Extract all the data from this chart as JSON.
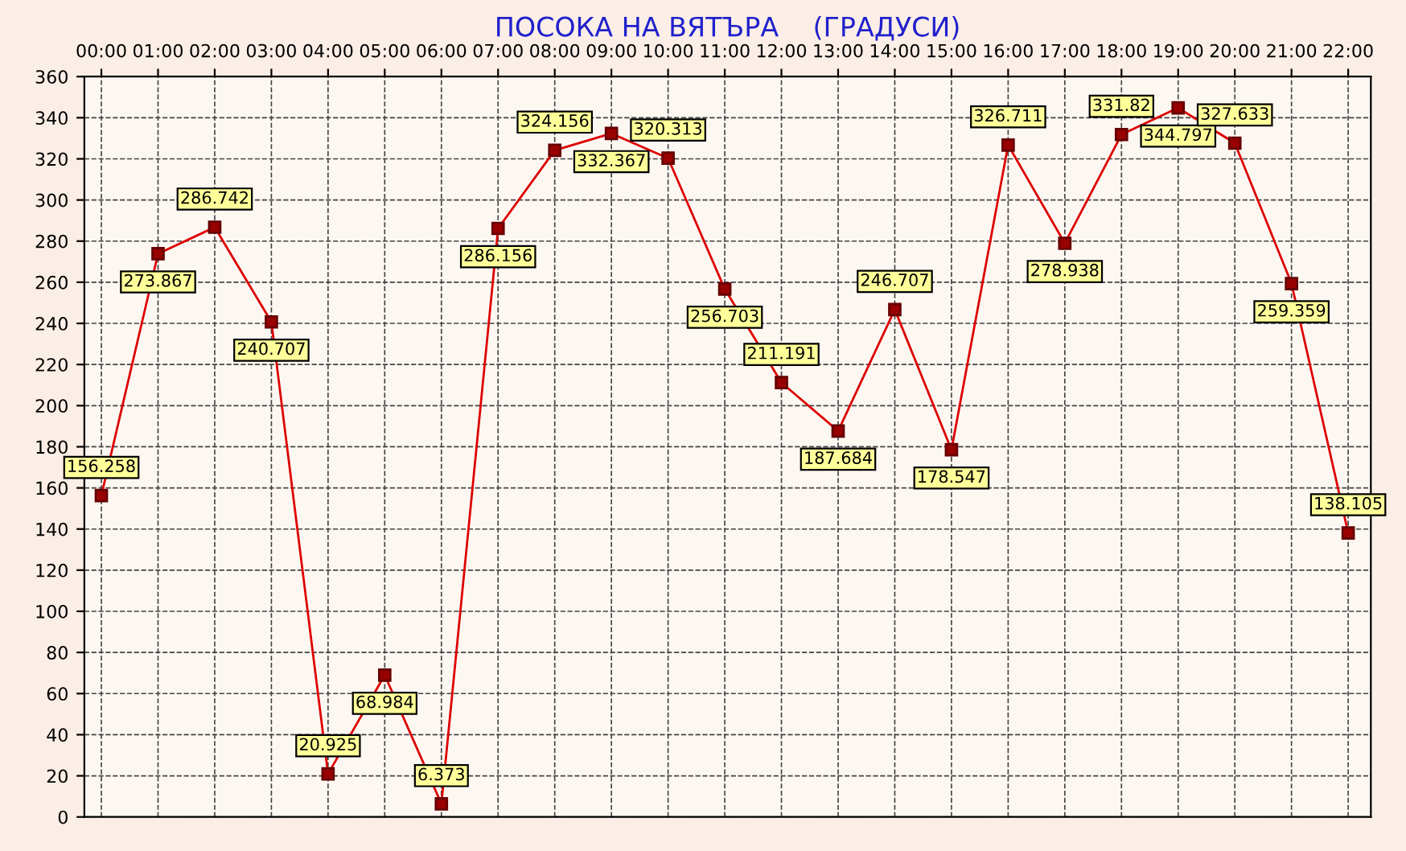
{
  "chart_data": {
    "type": "line",
    "title": "ПОСОКА НА ВЯТЪРА    (ГРАДУСИ)",
    "categories": [
      "00:00",
      "01:00",
      "02:00",
      "03:00",
      "04:00",
      "05:00",
      "06:00",
      "07:00",
      "08:00",
      "09:00",
      "10:00",
      "11:00",
      "12:00",
      "13:00",
      "14:00",
      "15:00",
      "16:00",
      "17:00",
      "18:00",
      "19:00",
      "20:00",
      "21:00",
      "22:00"
    ],
    "series": [
      {
        "color": "#dd0000",
        "values": [
          156.258,
          273.867,
          286.742,
          240.707,
          20.925,
          68.984,
          6.373,
          286.156,
          324.156,
          332.367,
          320.313,
          256.703,
          211.191,
          187.684,
          246.707,
          178.547,
          326.711,
          278.938,
          331.82,
          344.797,
          327.633,
          259.359,
          138.105
        ]
      }
    ],
    "ylim": [
      0,
      360
    ],
    "yticks": [
      0,
      20,
      40,
      60,
      80,
      100,
      120,
      140,
      160,
      180,
      200,
      220,
      240,
      260,
      280,
      300,
      320,
      340,
      360
    ],
    "grid": true,
    "marker": "square",
    "line_style": "solid",
    "data_labels": true
  }
}
